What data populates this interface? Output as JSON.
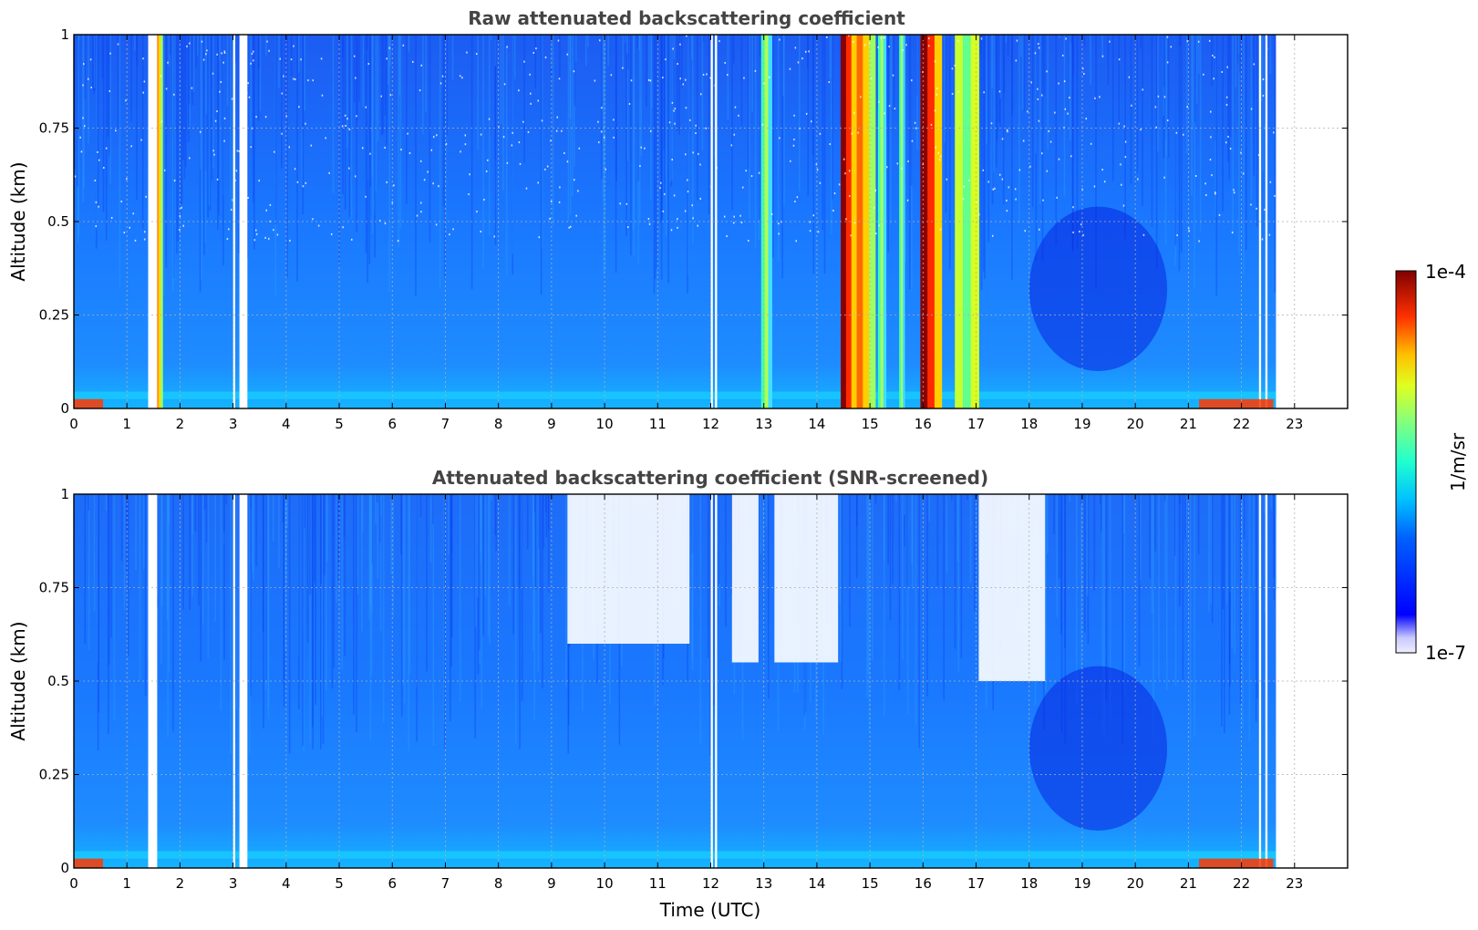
{
  "chart_data": [
    {
      "type": "heatmap",
      "title": "Raw attenuated backscattering coefficient",
      "xlabel": "",
      "ylabel": "Altitude (km)",
      "xlim": [
        0,
        24
      ],
      "ylim": [
        0,
        1
      ],
      "xticks": [
        "0",
        "1",
        "2",
        "3",
        "4",
        "5",
        "6",
        "7",
        "8",
        "9",
        "10",
        "11",
        "12",
        "13",
        "14",
        "15",
        "16",
        "17",
        "18",
        "19",
        "20",
        "21",
        "22",
        "23"
      ],
      "yticks": [
        "0",
        "0.25",
        "0.5",
        "0.75",
        "1"
      ],
      "grid": true,
      "data_end_hour": 22.65,
      "missing_columns": [
        [
          1.4,
          1.57
        ],
        [
          3.0,
          3.04
        ],
        [
          3.12,
          3.27
        ],
        [
          12.0,
          12.04
        ],
        [
          12.08,
          12.12
        ],
        [
          22.33,
          22.37
        ],
        [
          22.45,
          22.49
        ]
      ],
      "cloud_columns": [
        {
          "x": [
            1.55,
            1.67
          ],
          "intensity": "high"
        },
        {
          "x": [
            12.95,
            13.15
          ],
          "intensity": "moderate"
        },
        {
          "x": [
            14.45,
            14.75
          ],
          "intensity": "very high"
        },
        {
          "x": [
            14.75,
            15.1
          ],
          "intensity": "high"
        },
        {
          "x": [
            15.15,
            15.3
          ],
          "intensity": "moderate"
        },
        {
          "x": [
            15.55,
            15.65
          ],
          "intensity": "moderate"
        },
        {
          "x": [
            15.95,
            16.35
          ],
          "intensity": "very high"
        },
        {
          "x": [
            16.6,
            17.05
          ],
          "intensity": "moderate-high"
        }
      ],
      "noise_blanking": "scattered white pixels above ~0.4 km (none)",
      "units": "1/m/sr"
    },
    {
      "type": "heatmap",
      "title": "Attenuated backscattering coefficient (SNR-screened)",
      "xlabel": "Time (UTC)",
      "ylabel": "Altitude (km)",
      "xlim": [
        0,
        24
      ],
      "ylim": [
        0,
        1
      ],
      "xticks": [
        "0",
        "1",
        "2",
        "3",
        "4",
        "5",
        "6",
        "7",
        "8",
        "9",
        "10",
        "11",
        "12",
        "13",
        "14",
        "15",
        "16",
        "17",
        "18",
        "19",
        "20",
        "21",
        "22",
        "23"
      ],
      "yticks": [
        "0",
        "0.25",
        "0.5",
        "0.75",
        "1"
      ],
      "grid": true,
      "data_end_hour": 22.65,
      "missing_columns": [
        [
          1.4,
          1.57
        ],
        [
          3.0,
          3.04
        ],
        [
          3.12,
          3.27
        ],
        [
          12.0,
          12.04
        ],
        [
          12.08,
          12.12
        ],
        [
          22.33,
          22.37
        ],
        [
          22.45,
          22.49
        ]
      ],
      "screened_regions": [
        {
          "x": [
            9.3,
            11.6
          ],
          "y": [
            0.6,
            1.0
          ]
        },
        {
          "x": [
            12.4,
            12.9
          ],
          "y": [
            0.55,
            1.0
          ]
        },
        {
          "x": [
            13.2,
            14.4
          ],
          "y": [
            0.55,
            1.0
          ]
        },
        {
          "x": [
            17.05,
            18.3
          ],
          "y": [
            0.5,
            1.0
          ]
        }
      ],
      "units": "1/m/sr"
    }
  ],
  "colorbar": {
    "label": "1/m/sr",
    "max_label": "1e-4",
    "min_label": "1e-7",
    "scale": "log",
    "range": [
      1e-07,
      0.0001
    ],
    "colormap": "jet"
  }
}
